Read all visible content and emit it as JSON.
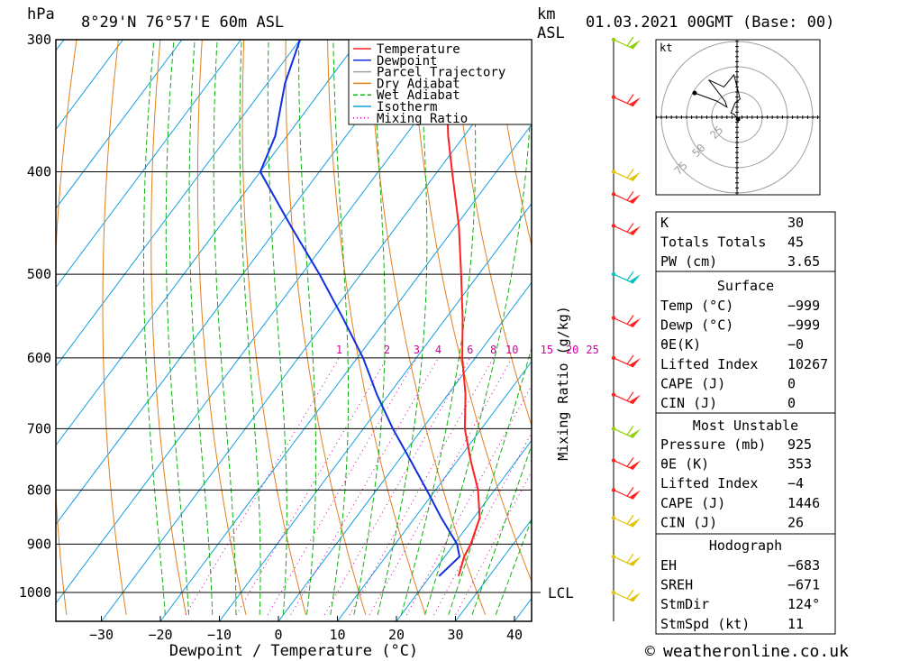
{
  "header": {
    "pressure_unit": "hPa",
    "location": "8°29'N  76°57'E  60m  ASL",
    "height_unit_km": "km",
    "height_unit_asl": "ASL",
    "datetime": "01.03.2021  00GMT  (Base: 00)"
  },
  "legend": [
    {
      "label": "Temperature",
      "color": "#ff2020",
      "style": "solid"
    },
    {
      "label": "Dewpoint",
      "color": "#1030e0",
      "style": "solid"
    },
    {
      "label": "Parcel Trajectory",
      "color": "#a0a0a0",
      "style": "solid"
    },
    {
      "label": "Dry Adiabat",
      "color": "#e08020",
      "style": "solid"
    },
    {
      "label": "Wet Adiabat",
      "color": "#10b010",
      "style": "dashed"
    },
    {
      "label": "Isotherm",
      "color": "#10a0e0",
      "style": "solid"
    },
    {
      "label": "Mixing Ratio",
      "color": "#d000a0",
      "style": "dotted"
    }
  ],
  "chart_data": {
    "type": "line",
    "title": "",
    "xlabel": "Dewpoint / Temperature (°C)",
    "ylabel": "hPa",
    "xlim": [
      -40,
      43
    ],
    "ylim": [
      1050,
      300
    ],
    "log_y": true,
    "skew": true,
    "x_ticks": [
      -30,
      -20,
      -10,
      0,
      10,
      20,
      30,
      40
    ],
    "y_ticks": [
      300,
      400,
      500,
      600,
      700,
      800,
      900,
      1000
    ],
    "mixing_ratio_labels": [
      "1",
      "2",
      "3",
      "4",
      "6",
      "8",
      "10",
      "15",
      "20",
      "25"
    ],
    "mixing_ratio_values": [
      1,
      2,
      3,
      4,
      6,
      8,
      10,
      15,
      20,
      25
    ],
    "mixing_ratio_axis_label": "Mixing Ratio (g/kg)",
    "lcl_label": "LCL",
    "lcl_pressure": 1000,
    "series": [
      {
        "name": "Temperature",
        "color": "#ff2020",
        "points": [
          [
            965,
            24.8
          ],
          [
            925,
            23.3
          ],
          [
            900,
            22.8
          ],
          [
            850,
            21.0
          ],
          [
            800,
            17.2
          ],
          [
            750,
            12.2
          ],
          [
            700,
            7.2
          ],
          [
            650,
            3.0
          ],
          [
            600,
            -2.2
          ],
          [
            550,
            -7.2
          ],
          [
            500,
            -13.0
          ],
          [
            450,
            -19.5
          ],
          [
            400,
            -27.5
          ],
          [
            370,
            -32.7
          ],
          [
            320,
            -41.5
          ],
          [
            300,
            -46.2
          ]
        ]
      },
      {
        "name": "Dewpoint",
        "color": "#1030e0",
        "points": [
          [
            965,
            21.5
          ],
          [
            925,
            22.5
          ],
          [
            900,
            20.5
          ],
          [
            850,
            14.5
          ],
          [
            800,
            8.5
          ],
          [
            750,
            2.0
          ],
          [
            700,
            -5.0
          ],
          [
            650,
            -12.0
          ],
          [
            600,
            -19.0
          ],
          [
            550,
            -27.5
          ],
          [
            500,
            -37.0
          ],
          [
            450,
            -48.0
          ],
          [
            400,
            -60.0
          ],
          [
            370,
            -62.0
          ],
          [
            330,
            -67.0
          ],
          [
            300,
            -70.0
          ]
        ]
      }
    ]
  },
  "indices": {
    "rows": [
      {
        "label": "K",
        "value": "30"
      },
      {
        "label": "Totals Totals",
        "value": "45"
      },
      {
        "label": "PW (cm)",
        "value": "3.65"
      }
    ]
  },
  "surface": {
    "title": "Surface",
    "rows": [
      {
        "label": "Temp (°C)",
        "value": "-999"
      },
      {
        "label": "Dewp (°C)",
        "value": "-999"
      },
      {
        "label": "θE(K)",
        "value": "-0"
      },
      {
        "label": "Lifted Index",
        "value": "10267"
      },
      {
        "label": "CAPE (J)",
        "value": "0"
      },
      {
        "label": "CIN (J)",
        "value": "0"
      }
    ]
  },
  "most_unstable": {
    "title": "Most Unstable",
    "rows": [
      {
        "label": "Pressure (mb)",
        "value": "925"
      },
      {
        "label": "θE (K)",
        "value": "353"
      },
      {
        "label": "Lifted Index",
        "value": "-4"
      },
      {
        "label": "CAPE (J)",
        "value": "1446"
      },
      {
        "label": "CIN (J)",
        "value": "26"
      }
    ]
  },
  "hodograph_table": {
    "title": "Hodograph",
    "rows": [
      {
        "label": "EH",
        "value": "-683"
      },
      {
        "label": "SREH",
        "value": "-671"
      },
      {
        "label": "StmDir",
        "value": "124°"
      },
      {
        "label": "StmSpd (kt)",
        "value": "11"
      }
    ]
  },
  "hodograph": {
    "unit": "kt",
    "ring_labels": [
      "25",
      "50",
      "75"
    ],
    "ring_values": [
      25,
      50,
      75
    ],
    "trace_uv": [
      [
        1,
        -2
      ],
      [
        -3,
        3
      ],
      [
        -6,
        4
      ],
      [
        -2,
        14
      ],
      [
        3,
        18
      ],
      [
        -3,
        42
      ],
      [
        -13,
        30
      ],
      [
        -28,
        37
      ],
      [
        -12,
        16
      ],
      [
        -10,
        10
      ],
      [
        -20,
        16
      ],
      [
        -42,
        24
      ]
    ]
  },
  "wind_profile": {
    "km_ticks": [],
    "barbs": [
      {
        "p": 1000,
        "color": "#e0c000"
      },
      {
        "p": 925,
        "color": "#e0c000"
      },
      {
        "p": 850,
        "color": "#e0c000"
      },
      {
        "p": 800,
        "color": "#ff2020"
      },
      {
        "p": 750,
        "color": "#ff2020"
      },
      {
        "p": 700,
        "color": "#90d000"
      },
      {
        "p": 650,
        "color": "#ff2020"
      },
      {
        "p": 600,
        "color": "#ff2020"
      },
      {
        "p": 550,
        "color": "#ff2020"
      },
      {
        "p": 500,
        "color": "#00c0c0"
      },
      {
        "p": 450,
        "color": "#ff2020"
      },
      {
        "p": 420,
        "color": "#ff2020"
      },
      {
        "p": 400,
        "color": "#e0c000"
      },
      {
        "p": 340,
        "color": "#ff2020"
      },
      {
        "p": 300,
        "color": "#90d000"
      }
    ]
  },
  "footer": {
    "copyright_symbol": "©",
    "site": "weatheronline.co.uk"
  }
}
